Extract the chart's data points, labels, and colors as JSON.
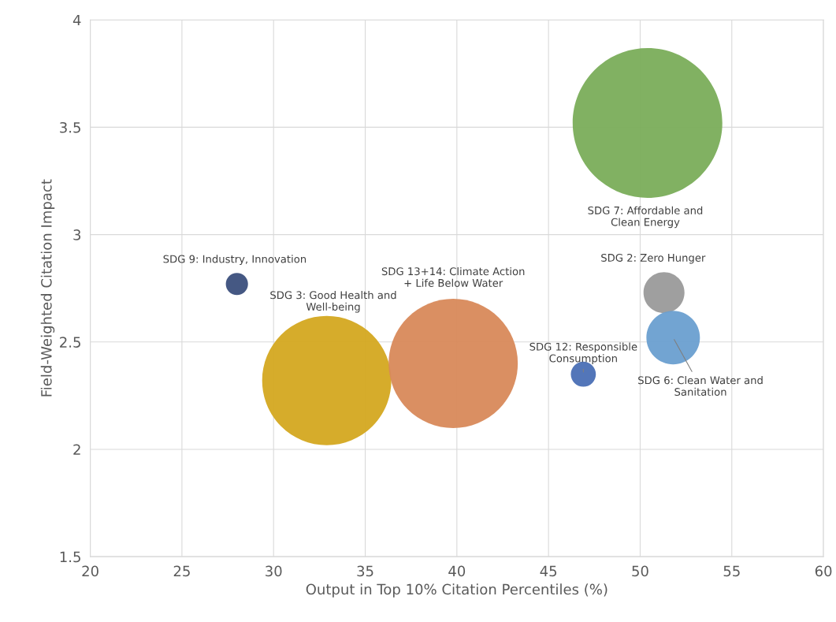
{
  "chart_data": {
    "type": "bubble",
    "xlabel": "Output in Top 10% Citation Percentiles (%)",
    "ylabel": "Field-Weighted Citation Impact",
    "xlim": [
      20,
      60
    ],
    "xticks": [
      20,
      25,
      30,
      35,
      40,
      45,
      50,
      55,
      60
    ],
    "ylim": [
      1.5,
      4
    ],
    "yticks": [
      1.5,
      2,
      2.5,
      3,
      3.5,
      4
    ],
    "grid": true,
    "legend": false,
    "series": [
      {
        "name": "SDG 9: Industry, Innovation",
        "color": "#3b4f7c",
        "x": [
          28.0
        ],
        "values": [
          2.77
        ],
        "sizes": [
          0.022
        ]
      },
      {
        "name": "SDG 3: Good Health and\nWell-being",
        "color": "#d4a820",
        "x": [
          32.9
        ],
        "values": [
          2.32
        ],
        "sizes": [
          0.745
        ]
      },
      {
        "name": "SDG 13+14: Climate Action\n+ Life Below Water",
        "color": "#d8895a",
        "x": [
          39.8
        ],
        "values": [
          2.4
        ],
        "sizes": [
          0.745
        ]
      },
      {
        "name": "SDG 12: Responsible\nConsumption",
        "color": "#4a6fb5",
        "x": [
          46.9
        ],
        "values": [
          2.35
        ],
        "sizes": [
          0.028
        ]
      },
      {
        "name": "SDG 7: Affordable and\nClean Energy",
        "color": "#7aad5a",
        "x": [
          50.4
        ],
        "values": [
          3.52
        ],
        "sizes": [
          1
        ]
      },
      {
        "name": "SDG 2: Zero Hunger",
        "color": "#9a9a9a",
        "x": [
          51.3
        ],
        "values": [
          2.73
        ],
        "sizes": [
          0.075
        ]
      },
      {
        "name": "SDG 6: Clean Water and\nSanitation",
        "color": "#6a9fd0",
        "x": [
          51.8
        ],
        "values": [
          2.52
        ],
        "sizes": [
          0.128
        ]
      }
    ]
  }
}
